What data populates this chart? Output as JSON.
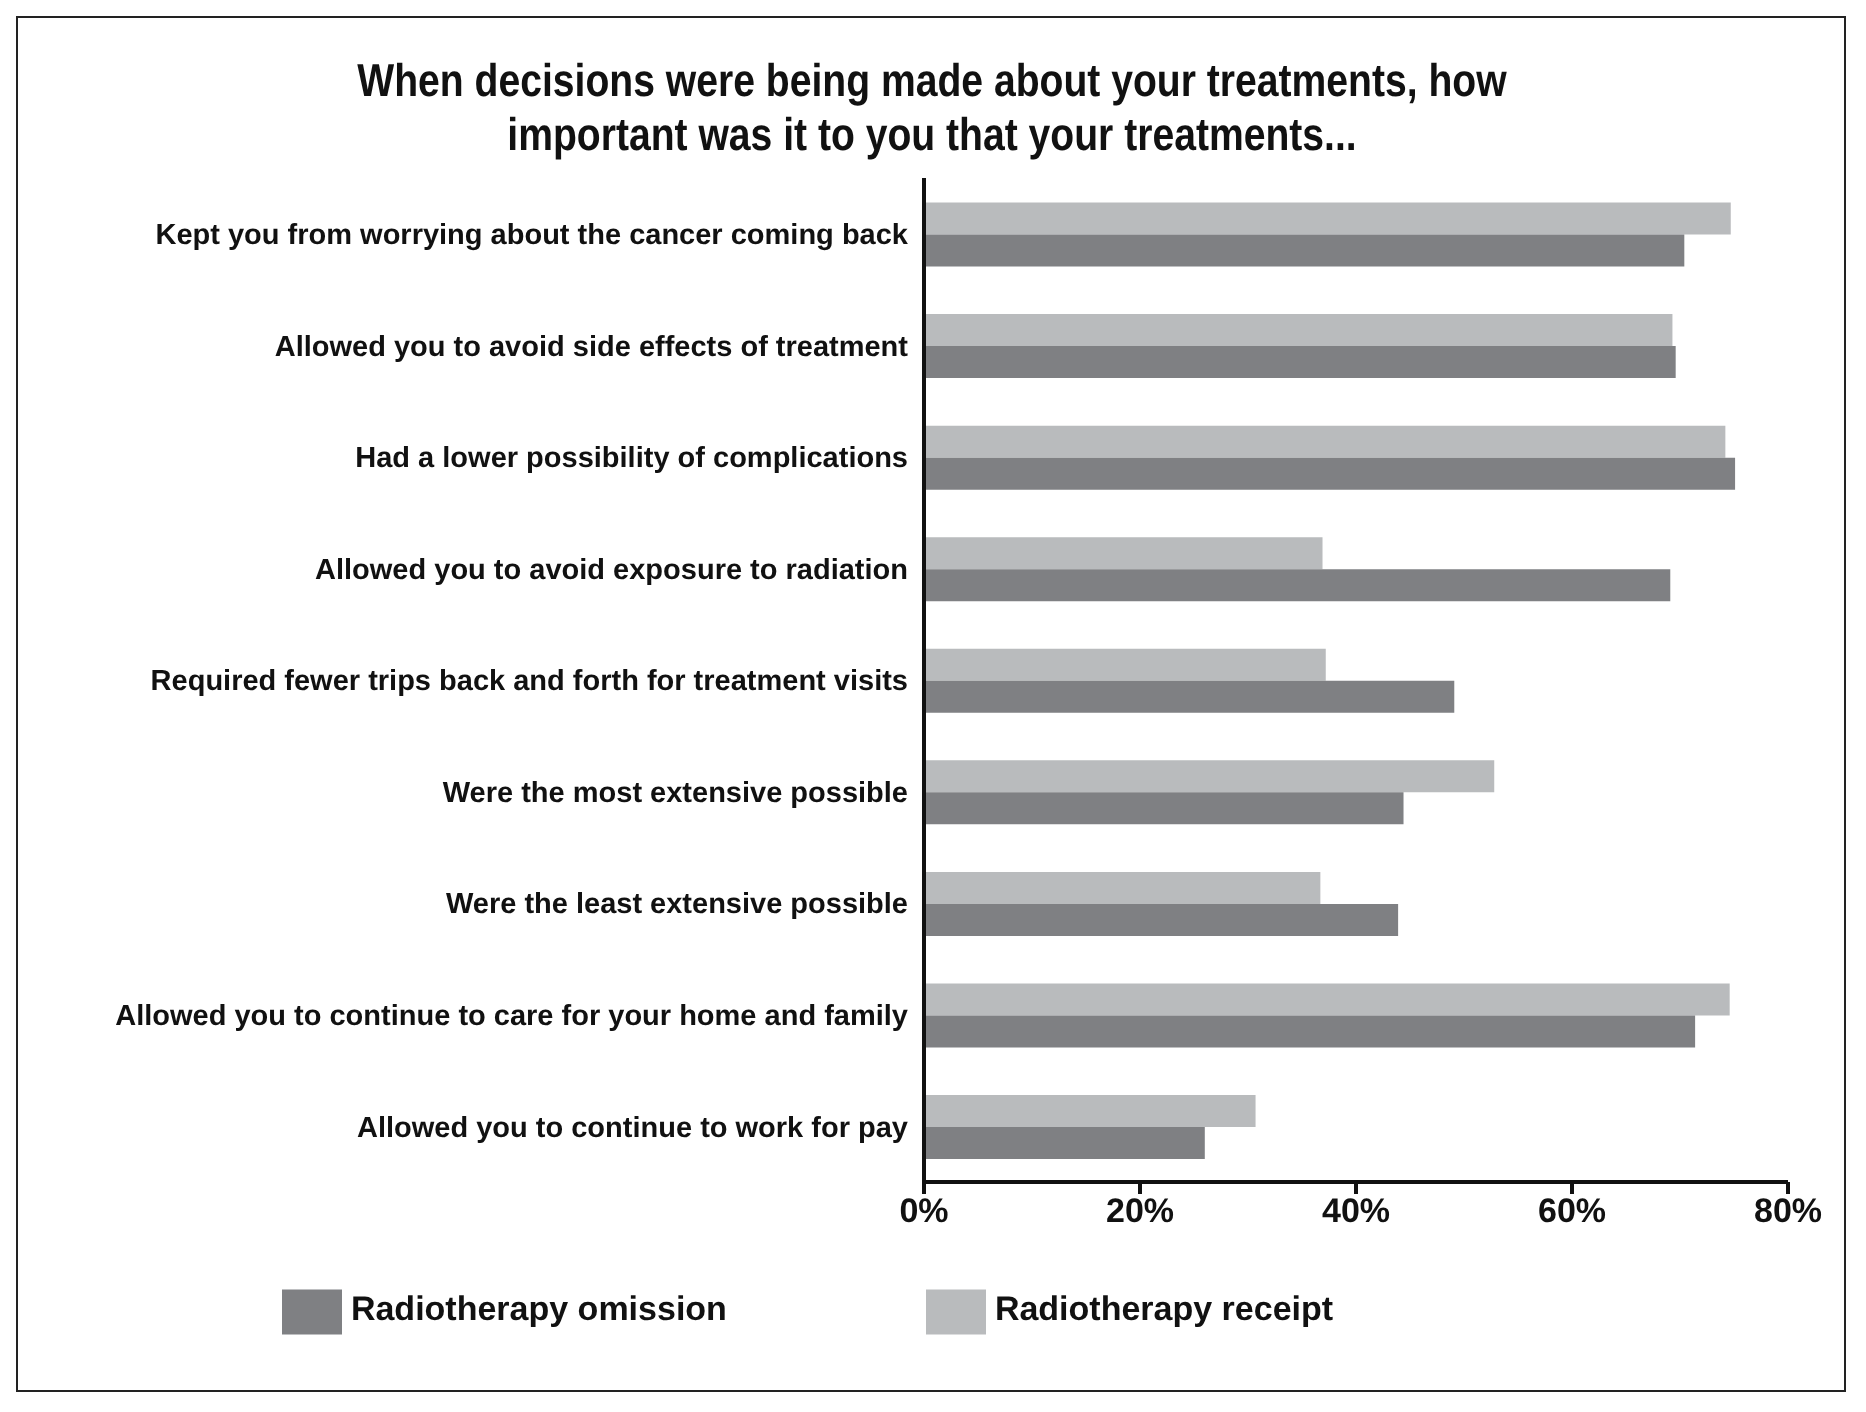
{
  "chart_data": {
    "type": "bar",
    "orientation": "horizontal",
    "title": "When decisions were being made about your treatments, how important was it to you that your treatments...",
    "categories": [
      "Kept you from worrying about the cancer coming back",
      "Allowed you to avoid side effects of treatment",
      "Had a lower possibility of complications",
      "Allowed you to avoid exposure to radiation",
      "Required fewer trips back and forth for treatment visits",
      "Were the most extensive possible",
      "Were the least extensive possible",
      "Allowed you to continue to care for your home and family",
      "Allowed you to continue to work for pay"
    ],
    "series": [
      {
        "name": "Radiotherapy receipt",
        "color": "#b9bbbd",
        "values": [
          74.7,
          69.3,
          74.2,
          36.9,
          37.2,
          52.8,
          36.7,
          74.6,
          30.7
        ]
      },
      {
        "name": "Radiotherapy omission",
        "color": "#7f8083",
        "values": [
          70.4,
          69.6,
          75.1,
          69.1,
          49.1,
          44.4,
          43.9,
          71.4,
          26.0
        ]
      }
    ],
    "xlim": [
      0,
      80
    ],
    "xticks": [
      {
        "value": 0,
        "label": "0%"
      },
      {
        "value": 20,
        "label": "20%"
      },
      {
        "value": 40,
        "label": "40%"
      },
      {
        "value": 60,
        "label": "60%"
      },
      {
        "value": 80,
        "label": "80%"
      }
    ],
    "grid": false,
    "legend": "bottom"
  }
}
